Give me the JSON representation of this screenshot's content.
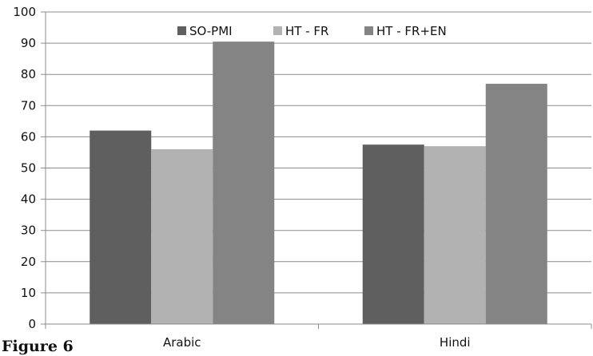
{
  "figure": {
    "caption_fragment": "Figure 6"
  },
  "chart_data": {
    "type": "bar",
    "categories": [
      "Arabic",
      "Hindi"
    ],
    "series": [
      {
        "name": "SO-PMI",
        "values": [
          62,
          57.5
        ],
        "color": "#5f5f5f"
      },
      {
        "name": "HT - FR",
        "values": [
          56,
          57
        ],
        "color": "#b2b2b2"
      },
      {
        "name": "HT - FR+EN",
        "values": [
          90.5,
          77
        ],
        "color": "#848484"
      }
    ],
    "title": "",
    "xlabel": "",
    "ylabel": "",
    "ylim": [
      0,
      100
    ],
    "yticks": [
      0,
      10,
      20,
      30,
      40,
      50,
      60,
      70,
      80,
      90,
      100
    ],
    "grid": "horizontal",
    "legend_position": "top"
  }
}
